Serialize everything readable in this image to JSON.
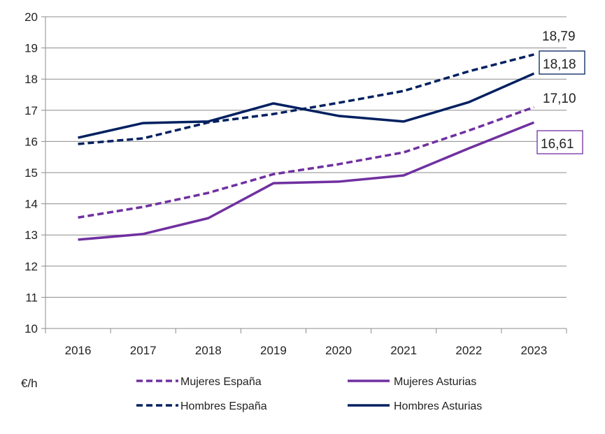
{
  "chart_data": {
    "type": "line",
    "title": "",
    "xlabel": "",
    "ylabel": "",
    "unit_label": "€/h",
    "categories": [
      "2016",
      "2017",
      "2018",
      "2019",
      "2020",
      "2021",
      "2022",
      "2023"
    ],
    "ylim": [
      10,
      20
    ],
    "yticks": [
      10,
      11,
      12,
      13,
      14,
      15,
      16,
      17,
      18,
      19,
      20
    ],
    "grid": true,
    "legend_position": "bottom",
    "series": [
      {
        "name": "Mujeres España",
        "color": "#7030A0",
        "dash": true,
        "values": [
          13.56,
          13.9,
          14.35,
          14.95,
          15.27,
          15.65,
          16.35,
          17.1
        ],
        "end_label": "17,10",
        "boxed": false
      },
      {
        "name": "Mujeres Asturias",
        "color": "#7030A0",
        "dash": false,
        "values": [
          12.85,
          13.03,
          13.54,
          14.66,
          14.71,
          14.91,
          15.78,
          16.61
        ],
        "end_label": "16,61",
        "boxed": true
      },
      {
        "name": "Hombres España",
        "color": "#002060",
        "dash": true,
        "values": [
          15.92,
          16.1,
          16.61,
          16.88,
          17.24,
          17.62,
          18.25,
          18.79
        ],
        "end_label": "18,79",
        "boxed": false
      },
      {
        "name": "Hombres Asturias",
        "color": "#002060",
        "dash": false,
        "values": [
          16.12,
          16.59,
          16.64,
          17.22,
          16.82,
          16.64,
          17.26,
          18.18
        ],
        "end_label": "18,18",
        "boxed": true
      }
    ]
  }
}
